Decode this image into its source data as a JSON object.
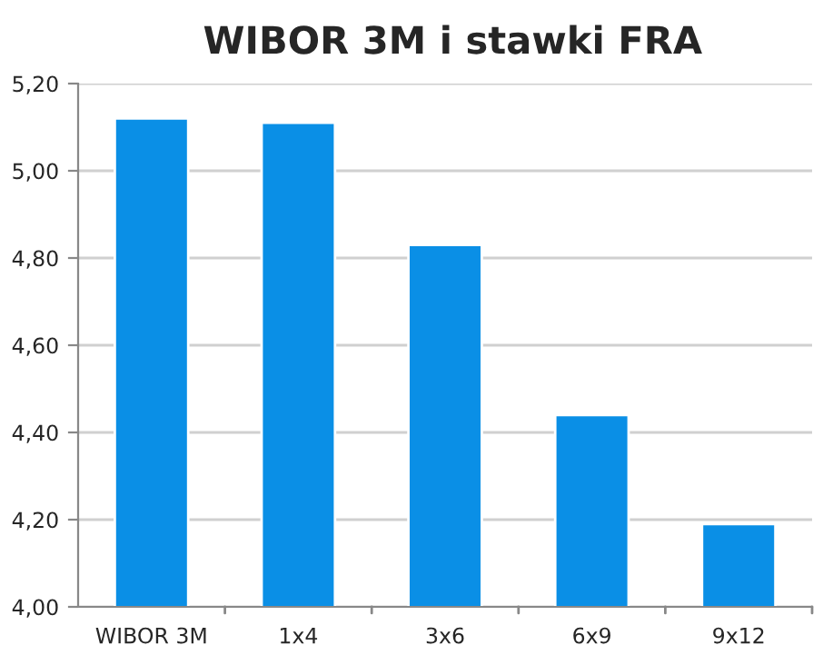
{
  "chart_data": {
    "type": "bar",
    "title": "WIBOR 3M i stawki FRA",
    "categories": [
      "WIBOR 3M",
      "1x4",
      "3x6",
      "6x9",
      "9x12"
    ],
    "values": [
      5.12,
      5.11,
      4.83,
      4.44,
      4.19
    ],
    "color": "#0a8fe6",
    "ylim": [
      4.0,
      5.2
    ],
    "yticks": [
      {
        "value": 4.0,
        "label": "4,00"
      },
      {
        "value": 4.2,
        "label": "4,20"
      },
      {
        "value": 4.4,
        "label": "4,40"
      },
      {
        "value": 4.6,
        "label": "4,60"
      },
      {
        "value": 4.8,
        "label": "4,80"
      },
      {
        "value": 5.0,
        "label": "5,00"
      },
      {
        "value": 5.2,
        "label": "5,20"
      }
    ],
    "grid": "y",
    "legend": false
  }
}
